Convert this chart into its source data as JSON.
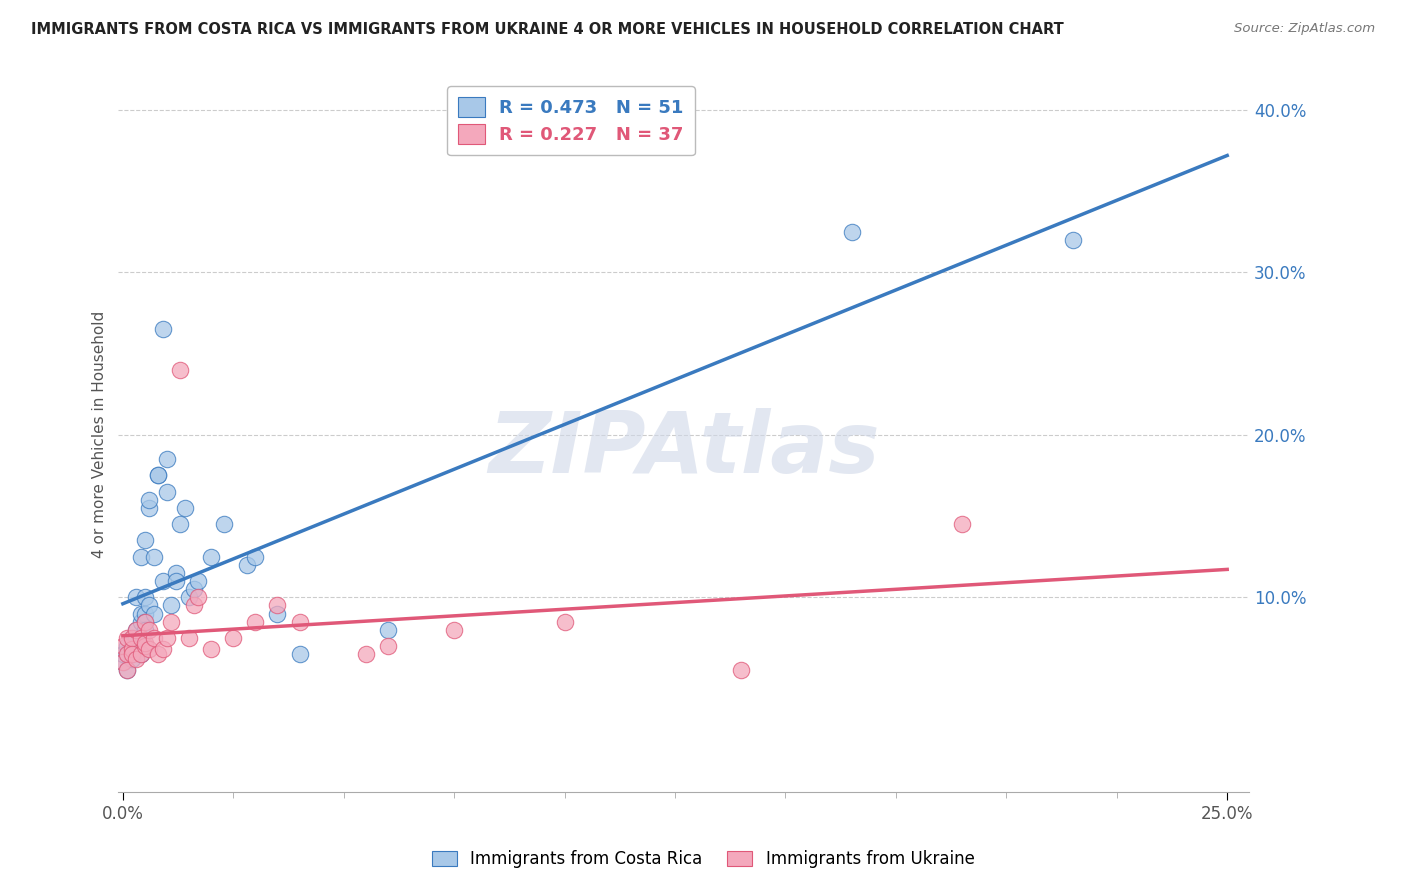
{
  "title": "IMMIGRANTS FROM COSTA RICA VS IMMIGRANTS FROM UKRAINE 4 OR MORE VEHICLES IN HOUSEHOLD CORRELATION CHART",
  "source": "Source: ZipAtlas.com",
  "ylabel": "4 or more Vehicles in Household",
  "costa_rica_R": 0.473,
  "costa_rica_N": 51,
  "ukraine_R": 0.227,
  "ukraine_N": 37,
  "blue_color": "#a8c8e8",
  "pink_color": "#f4a8bc",
  "blue_line_color": "#3a7abf",
  "pink_line_color": "#e05878",
  "legend_text_blue": "#3a7abf",
  "legend_text_pink": "#e05878",
  "ytick_color": "#3a7abf",
  "watermark_color": "#d0d8e8",
  "xlim": [
    -0.001,
    0.255
  ],
  "ylim": [
    -0.02,
    0.42
  ],
  "yticks": [
    0.0,
    0.1,
    0.2,
    0.3,
    0.4
  ],
  "ytick_labels": [
    "",
    "10.0%",
    "20.0%",
    "30.0%",
    "40.0%"
  ],
  "xtick_vals": [
    0.0,
    0.25
  ],
  "xtick_labels": [
    "0.0%",
    "25.0%"
  ],
  "costa_rica_x": [
    0.0,
    0.0,
    0.001,
    0.001,
    0.001,
    0.002,
    0.002,
    0.002,
    0.002,
    0.003,
    0.003,
    0.003,
    0.003,
    0.004,
    0.004,
    0.004,
    0.004,
    0.004,
    0.005,
    0.005,
    0.005,
    0.005,
    0.005,
    0.006,
    0.006,
    0.006,
    0.007,
    0.007,
    0.008,
    0.008,
    0.009,
    0.009,
    0.01,
    0.01,
    0.011,
    0.012,
    0.012,
    0.013,
    0.014,
    0.015,
    0.016,
    0.017,
    0.02,
    0.023,
    0.028,
    0.03,
    0.035,
    0.04,
    0.06,
    0.165,
    0.215
  ],
  "costa_rica_y": [
    0.06,
    0.065,
    0.07,
    0.065,
    0.055,
    0.065,
    0.07,
    0.075,
    0.062,
    0.075,
    0.08,
    0.068,
    0.1,
    0.085,
    0.075,
    0.09,
    0.065,
    0.125,
    0.1,
    0.09,
    0.085,
    0.135,
    0.08,
    0.095,
    0.155,
    0.16,
    0.125,
    0.09,
    0.175,
    0.175,
    0.265,
    0.11,
    0.185,
    0.165,
    0.095,
    0.115,
    0.11,
    0.145,
    0.155,
    0.1,
    0.105,
    0.11,
    0.125,
    0.145,
    0.12,
    0.125,
    0.09,
    0.065,
    0.08,
    0.325,
    0.32
  ],
  "ukraine_x": [
    0.0,
    0.0,
    0.001,
    0.001,
    0.001,
    0.002,
    0.002,
    0.002,
    0.003,
    0.003,
    0.004,
    0.004,
    0.005,
    0.005,
    0.005,
    0.006,
    0.006,
    0.007,
    0.008,
    0.009,
    0.01,
    0.011,
    0.013,
    0.015,
    0.016,
    0.017,
    0.02,
    0.025,
    0.03,
    0.035,
    0.04,
    0.055,
    0.06,
    0.075,
    0.1,
    0.14,
    0.19
  ],
  "ukraine_y": [
    0.07,
    0.06,
    0.065,
    0.075,
    0.055,
    0.068,
    0.075,
    0.065,
    0.062,
    0.08,
    0.075,
    0.065,
    0.07,
    0.085,
    0.072,
    0.068,
    0.08,
    0.075,
    0.065,
    0.068,
    0.075,
    0.085,
    0.24,
    0.075,
    0.095,
    0.1,
    0.068,
    0.075,
    0.085,
    0.095,
    0.085,
    0.065,
    0.07,
    0.08,
    0.085,
    0.055,
    0.145
  ]
}
